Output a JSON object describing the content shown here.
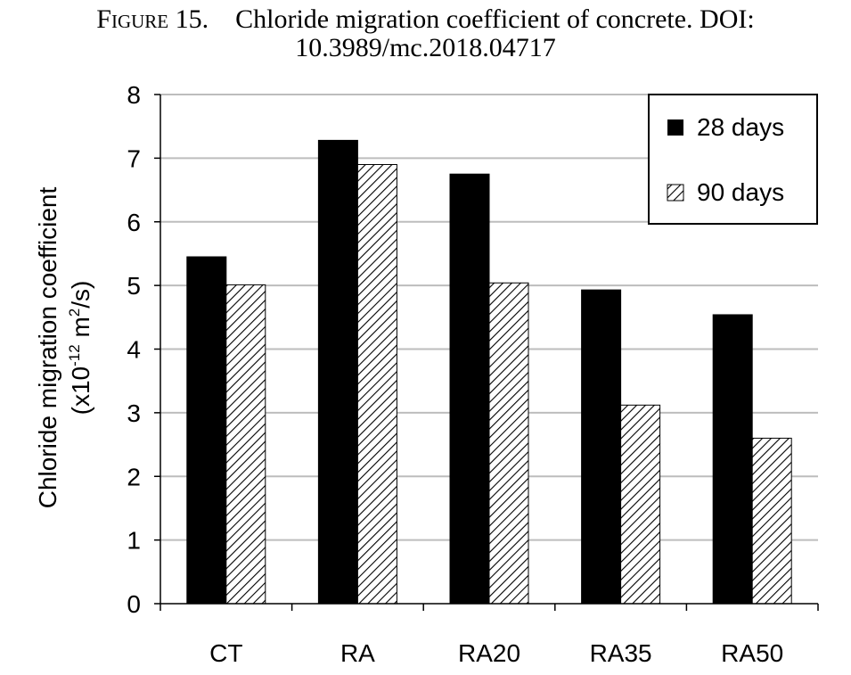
{
  "caption": {
    "figure_label": "Figure 15.",
    "title_line1": "Chloride migration coefficient of concrete. DOI:",
    "title_line2": "10.3989/mc.2018.04717"
  },
  "chart_data": {
    "type": "bar",
    "categories": [
      "CT",
      "RA",
      "RA20",
      "RA35",
      "RA50"
    ],
    "series": [
      {
        "name": "28 days",
        "values": [
          5.45,
          7.28,
          6.75,
          4.93,
          4.54
        ],
        "fill": "#000000"
      },
      {
        "name": "90 days",
        "values": [
          5.01,
          6.9,
          5.04,
          3.12,
          2.6
        ],
        "fill": "hatch"
      }
    ],
    "ylabel_line1": "Chloride migration coefficient",
    "ylabel_line2_pre": "(x10",
    "ylabel_line2_exp1": "-12",
    "ylabel_line2_mid": " m",
    "ylabel_line2_exp2": "2",
    "ylabel_line2_post": "/s)",
    "ylim": [
      0,
      8
    ],
    "yticks": [
      0,
      1,
      2,
      3,
      4,
      5,
      6,
      7,
      8
    ],
    "grid": true,
    "legend_position": "top-right"
  }
}
